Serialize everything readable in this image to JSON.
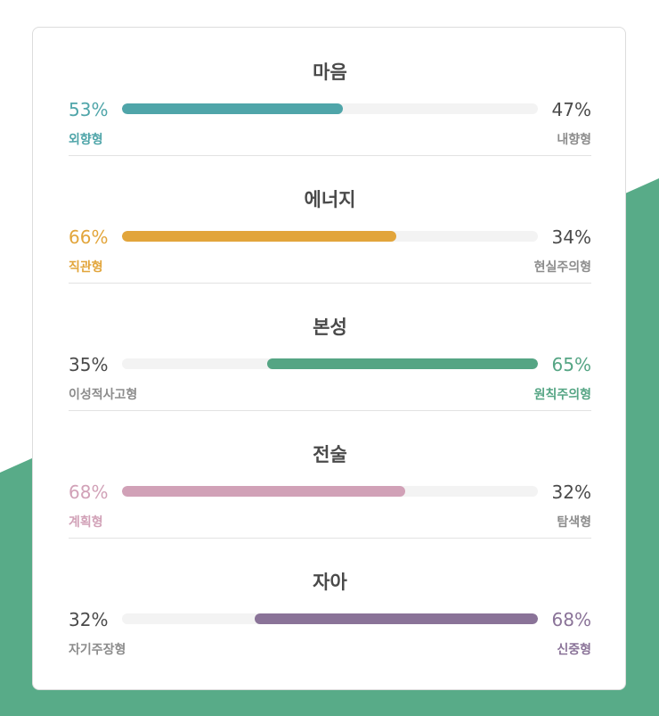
{
  "theme": {
    "card_border": "#dcdcdc",
    "track": "#f3f3f3",
    "background_shape": "#58ab88",
    "neutral_text": "#4a4a4a",
    "muted_text": "#8c8c8c"
  },
  "traits": [
    {
      "title": "마음",
      "left": {
        "percent": "53%",
        "label": "외향형"
      },
      "right": {
        "percent": "47%",
        "label": "내향형"
      },
      "dominant": "left",
      "fill_fraction": 0.53,
      "color": "#4fa5a9"
    },
    {
      "title": "에너지",
      "left": {
        "percent": "66%",
        "label": "직관형"
      },
      "right": {
        "percent": "34%",
        "label": "현실주의형"
      },
      "dominant": "left",
      "fill_fraction": 0.66,
      "color": "#e2a53b"
    },
    {
      "title": "본성",
      "left": {
        "percent": "35%",
        "label": "이성적사고형"
      },
      "right": {
        "percent": "65%",
        "label": "원칙주의형"
      },
      "dominant": "right",
      "fill_fraction": 0.65,
      "color": "#55a584"
    },
    {
      "title": "전술",
      "left": {
        "percent": "68%",
        "label": "계획형"
      },
      "right": {
        "percent": "32%",
        "label": "탐색형"
      },
      "dominant": "left",
      "fill_fraction": 0.68,
      "color": "#d1a1b7"
    },
    {
      "title": "자아",
      "left": {
        "percent": "32%",
        "label": "자기주장형"
      },
      "right": {
        "percent": "68%",
        "label": "신중형"
      },
      "dominant": "right",
      "fill_fraction": 0.68,
      "color": "#8a7398"
    }
  ]
}
